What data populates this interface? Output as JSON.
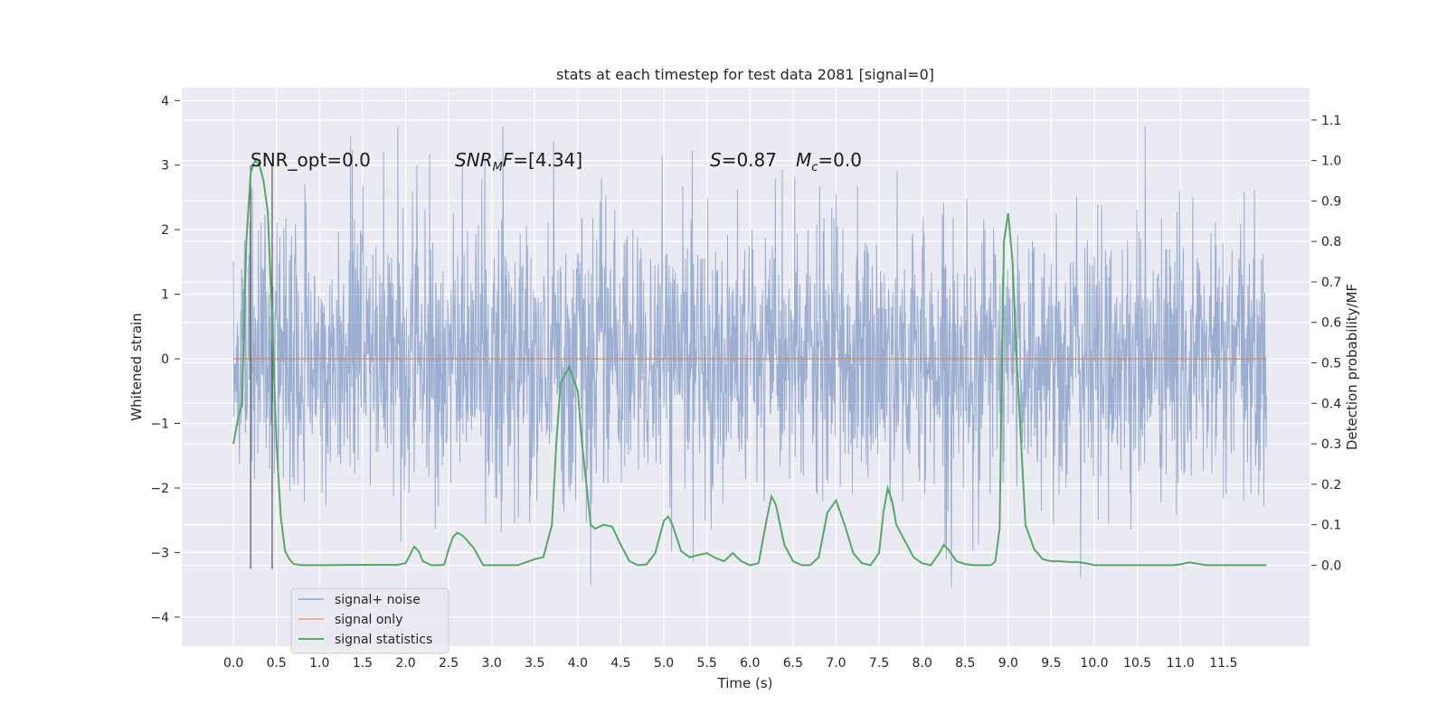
{
  "chart_data": {
    "type": "line",
    "title": "stats at each timestep for test data 2081 [signal=0]",
    "xlabel": "Time (s)",
    "ylabel_left": "Whitened strain",
    "ylabel_right": "Detection probability/MF",
    "xlim": [
      -0.6,
      12.5
    ],
    "ylim_left": [
      -4.45,
      4.2
    ],
    "ylim_right": [
      -0.2,
      1.18
    ],
    "x_ticks": [
      0.0,
      0.5,
      1.0,
      1.5,
      2.0,
      2.5,
      3.0,
      3.5,
      4.0,
      4.5,
      5.0,
      5.5,
      6.0,
      6.5,
      7.0,
      7.5,
      8.0,
      8.5,
      9.0,
      9.5,
      10.0,
      10.5,
      11.0,
      11.5
    ],
    "x_tick_labels": [
      "0.0",
      "0.5",
      "1.0",
      "1.5",
      "2.0",
      "2.5",
      "3.0",
      "3.5",
      "4.0",
      "4.5",
      "5.0",
      "5.5",
      "6.0",
      "6.5",
      "7.0",
      "7.5",
      "8.0",
      "8.5",
      "9.0",
      "9.5",
      "10.0",
      "10.5",
      "11.0",
      "11.5"
    ],
    "y_left_ticks": [
      -4,
      -3,
      -2,
      -1,
      0,
      1,
      2,
      3,
      4
    ],
    "y_left_tick_labels": [
      "−4",
      "−3",
      "−2",
      "−1",
      "0",
      "1",
      "2",
      "3",
      "4"
    ],
    "y_right_ticks": [
      0.0,
      0.1,
      0.2,
      0.3,
      0.4,
      0.5,
      0.6,
      0.7,
      0.8,
      0.9,
      1.0,
      1.1
    ],
    "y_right_tick_labels": [
      "0.0",
      "0.1",
      "0.2",
      "0.3",
      "0.4",
      "0.5",
      "0.6",
      "0.7",
      "0.8",
      "0.9",
      "1.0",
      "1.1"
    ],
    "grid": true,
    "background": "#eaeaf2",
    "legend_position": "lower-left",
    "series": [
      {
        "name": "signal+ noise",
        "color": "#4c72b0",
        "opacity": 0.5,
        "x_range": [
          0.0,
          12.0
        ],
        "envelope": {
          "upper_typical": 1.7,
          "lower_typical": -1.7,
          "upper_peak": 3.6,
          "lower_peak": -4.1
        }
      },
      {
        "name": "signal only",
        "color": "#dd8452",
        "x": [
          0.0,
          12.0
        ],
        "y": [
          0.0,
          0.0
        ]
      },
      {
        "name": "signal statistics",
        "color": "#55a868",
        "axis": "right",
        "x": [
          0.0,
          0.05,
          0.1,
          0.15,
          0.2,
          0.25,
          0.3,
          0.35,
          0.4,
          0.45,
          0.5,
          0.55,
          0.6,
          0.65,
          0.7,
          0.8,
          0.9,
          1.0,
          1.5,
          1.9,
          2.0,
          2.05,
          2.1,
          2.15,
          2.2,
          2.3,
          2.4,
          2.45,
          2.5,
          2.55,
          2.6,
          2.65,
          2.7,
          2.8,
          2.9,
          3.0,
          3.1,
          3.3,
          3.5,
          3.6,
          3.7,
          3.75,
          3.8,
          3.9,
          4.0,
          4.05,
          4.1,
          4.15,
          4.2,
          4.3,
          4.4,
          4.5,
          4.6,
          4.7,
          4.8,
          4.9,
          5.0,
          5.05,
          5.1,
          5.2,
          5.3,
          5.4,
          5.5,
          5.6,
          5.7,
          5.8,
          5.9,
          6.0,
          6.1,
          6.2,
          6.25,
          6.3,
          6.35,
          6.4,
          6.5,
          6.6,
          6.7,
          6.8,
          6.9,
          7.0,
          7.1,
          7.2,
          7.3,
          7.4,
          7.5,
          7.55,
          7.6,
          7.65,
          7.7,
          7.8,
          7.9,
          8.0,
          8.1,
          8.2,
          8.25,
          8.3,
          8.4,
          8.5,
          8.6,
          8.7,
          8.8,
          8.85,
          8.9,
          8.95,
          9.0,
          9.05,
          9.1,
          9.2,
          9.3,
          9.4,
          9.5,
          9.6,
          9.7,
          9.8,
          9.9,
          10.0,
          10.5,
          10.9,
          11.0,
          11.1,
          11.3,
          11.6,
          12.0
        ],
        "y": [
          0.3,
          0.36,
          0.4,
          0.8,
          0.97,
          1.0,
          0.99,
          0.95,
          0.87,
          0.6,
          0.3,
          0.12,
          0.035,
          0.015,
          0.003,
          0.0,
          0.0,
          0.0,
          0.001,
          0.001,
          0.005,
          0.025,
          0.046,
          0.035,
          0.01,
          0.0,
          0.0,
          0.002,
          0.04,
          0.07,
          0.08,
          0.075,
          0.065,
          0.04,
          0.0,
          0.0,
          0.0,
          0.0,
          0.015,
          0.02,
          0.1,
          0.3,
          0.45,
          0.49,
          0.43,
          0.3,
          0.2,
          0.1,
          0.09,
          0.1,
          0.095,
          0.05,
          0.01,
          0.0,
          0.002,
          0.03,
          0.11,
          0.12,
          0.1,
          0.035,
          0.02,
          0.025,
          0.03,
          0.018,
          0.01,
          0.03,
          0.01,
          0.0,
          0.005,
          0.12,
          0.17,
          0.15,
          0.1,
          0.05,
          0.01,
          0.0,
          0.0,
          0.02,
          0.13,
          0.16,
          0.1,
          0.03,
          0.005,
          0.0,
          0.03,
          0.13,
          0.19,
          0.16,
          0.1,
          0.06,
          0.02,
          0.005,
          0.0,
          0.03,
          0.05,
          0.04,
          0.01,
          0.003,
          0.0,
          0.0,
          0.0,
          0.01,
          0.09,
          0.8,
          0.87,
          0.75,
          0.5,
          0.1,
          0.04,
          0.015,
          0.01,
          0.01,
          0.008,
          0.008,
          0.005,
          0.0,
          0.0,
          0.0,
          0.002,
          0.007,
          0.0,
          0.0,
          0.0
        ]
      }
    ],
    "vertical_markers": {
      "color": "#222222",
      "x": [
        0.2,
        0.45
      ],
      "y_range": [
        -3.25,
        3.0
      ]
    },
    "annotations": {
      "snr_opt": "SNR_opt=0.0",
      "snr_mf_base": "SNR",
      "snr_mf_sub": "M",
      "snr_mf_rest": "F=[4.34]",
      "s_var": "S",
      "s_val": "=0.87",
      "mc_var": "M",
      "mc_sub": "c",
      "mc_val": "=0.0"
    }
  }
}
